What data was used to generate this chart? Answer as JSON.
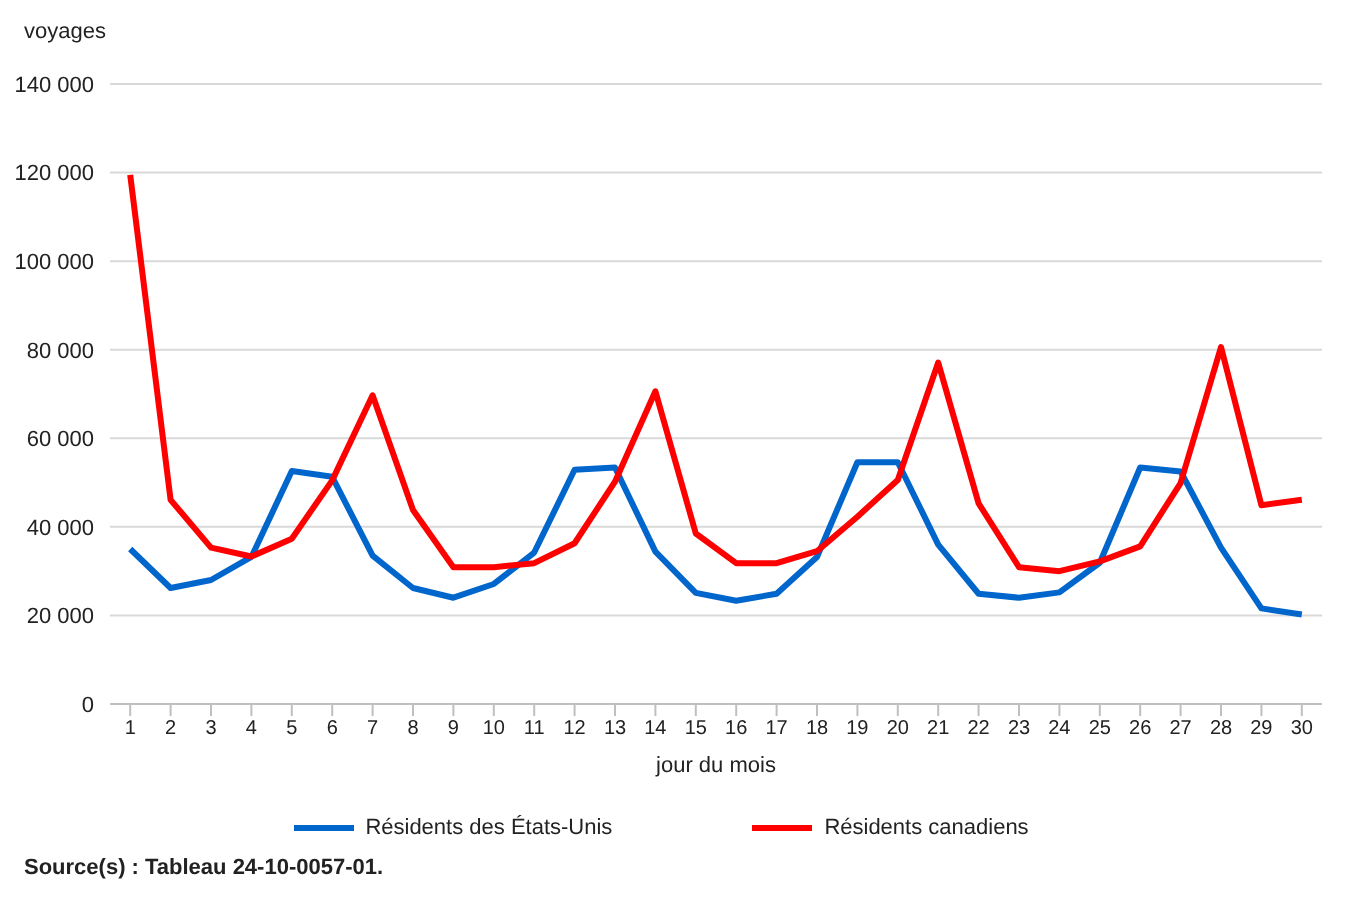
{
  "chart_data": {
    "type": "line",
    "ylabel": "voyages",
    "xlabel": "jour du mois",
    "x": [
      1,
      2,
      3,
      4,
      5,
      6,
      7,
      8,
      9,
      10,
      11,
      12,
      13,
      14,
      15,
      16,
      17,
      18,
      19,
      20,
      21,
      22,
      23,
      24,
      25,
      26,
      27,
      28,
      29,
      30
    ],
    "xlim": [
      0.5,
      30.5
    ],
    "xticks": [
      1,
      2,
      3,
      4,
      5,
      6,
      7,
      8,
      9,
      10,
      11,
      12,
      13,
      14,
      15,
      16,
      17,
      18,
      19,
      20,
      21,
      22,
      23,
      24,
      25,
      26,
      27,
      28,
      29,
      30
    ],
    "series": [
      {
        "name": "Résidents des États-Unis",
        "color": "#0066cc",
        "values": [
          35000,
          26200,
          28000,
          33200,
          52600,
          51300,
          33500,
          26200,
          24000,
          27100,
          34200,
          52900,
          53400,
          34400,
          25100,
          23300,
          24900,
          33200,
          54600,
          54600,
          36000,
          24900,
          24000,
          25200,
          31900,
          53400,
          52500,
          35300,
          21600,
          20200
        ]
      },
      {
        "name": "Résidents canadiens",
        "color": "#ff0000",
        "values": [
          119500,
          46100,
          35300,
          33300,
          37300,
          50500,
          69700,
          43800,
          30900,
          30900,
          31800,
          36300,
          50200,
          70600,
          38500,
          31800,
          31800,
          34500,
          42300,
          50600,
          77100,
          45300,
          30900,
          30000,
          32200,
          35600,
          49900,
          80600,
          44900,
          46100
        ]
      }
    ],
    "ylim": [
      0,
      140000
    ],
    "yticks": [
      0,
      20000,
      40000,
      60000,
      80000,
      100000,
      120000,
      140000
    ],
    "grid": "y",
    "legend": "bottom",
    "marker": "none",
    "line_style": "solid",
    "annotations": [
      "Source(s) : Tableau 24-10-0057-01."
    ]
  }
}
